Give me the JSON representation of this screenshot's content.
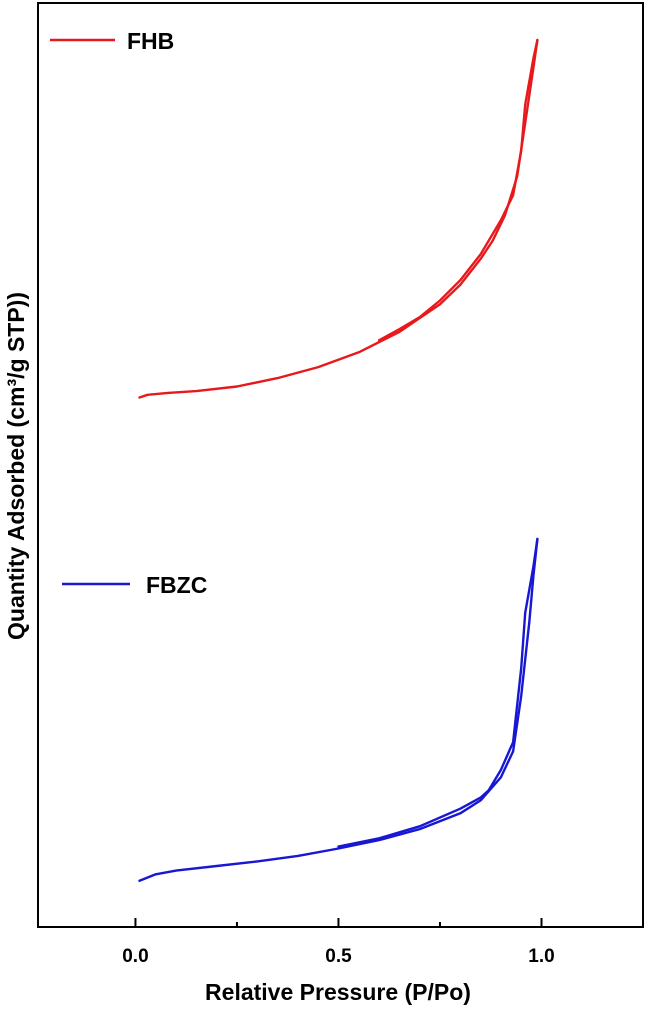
{
  "chart_data": {
    "type": "line",
    "title": "",
    "xlabel": "Relative Pressure (P/Po)",
    "ylabel": "Quantity Adsorbed (cm³/g STP))",
    "xlim": [
      -0.24,
      1.25
    ],
    "ylim": [
      0,
      100
    ],
    "x_ticks": [
      0.0,
      0.5,
      1.0
    ],
    "x_tick_labels": [
      "0.0",
      "0.5",
      "1.0"
    ],
    "y_ticks_labeled": false,
    "grid": false,
    "legend": "inline",
    "series": [
      {
        "name": "FHB",
        "color": "#e8191c",
        "adsorption": [
          [
            0.01,
            57.3
          ],
          [
            0.03,
            57.6
          ],
          [
            0.08,
            57.8
          ],
          [
            0.15,
            58.0
          ],
          [
            0.25,
            58.5
          ],
          [
            0.35,
            59.4
          ],
          [
            0.45,
            60.6
          ],
          [
            0.55,
            62.2
          ],
          [
            0.65,
            64.4
          ],
          [
            0.75,
            67.4
          ],
          [
            0.8,
            69.5
          ],
          [
            0.85,
            72.3
          ],
          [
            0.88,
            74.3
          ],
          [
            0.91,
            77.0
          ],
          [
            0.94,
            81.2
          ],
          [
            0.96,
            87.0
          ],
          [
            0.98,
            93.0
          ],
          [
            0.99,
            96.0
          ]
        ],
        "desorption": [
          [
            0.99,
            96.0
          ],
          [
            0.98,
            94.0
          ],
          [
            0.96,
            89.0
          ],
          [
            0.95,
            84.0
          ],
          [
            0.93,
            79.2
          ],
          [
            0.9,
            76.5
          ],
          [
            0.85,
            72.8
          ],
          [
            0.8,
            70.0
          ],
          [
            0.75,
            67.8
          ],
          [
            0.7,
            66.0
          ],
          [
            0.65,
            64.7
          ],
          [
            0.6,
            63.5
          ]
        ]
      },
      {
        "name": "FBZC",
        "color": "#1717d4",
        "adsorption": [
          [
            0.01,
            5.0
          ],
          [
            0.05,
            5.7
          ],
          [
            0.1,
            6.1
          ],
          [
            0.2,
            6.6
          ],
          [
            0.3,
            7.1
          ],
          [
            0.4,
            7.7
          ],
          [
            0.5,
            8.5
          ],
          [
            0.6,
            9.4
          ],
          [
            0.7,
            10.6
          ],
          [
            0.8,
            12.3
          ],
          [
            0.85,
            13.7
          ],
          [
            0.9,
            16.2
          ],
          [
            0.93,
            19.0
          ],
          [
            0.95,
            25.0
          ],
          [
            0.97,
            33.0
          ],
          [
            0.98,
            38.0
          ],
          [
            0.99,
            42.0
          ]
        ],
        "desorption": [
          [
            0.99,
            42.0
          ],
          [
            0.98,
            39.0
          ],
          [
            0.96,
            34.0
          ],
          [
            0.95,
            28.0
          ],
          [
            0.93,
            20.0
          ],
          [
            0.9,
            17.0
          ],
          [
            0.87,
            14.8
          ],
          [
            0.85,
            14.0
          ],
          [
            0.8,
            12.8
          ],
          [
            0.7,
            10.9
          ],
          [
            0.6,
            9.6
          ],
          [
            0.5,
            8.7
          ]
        ]
      }
    ]
  }
}
